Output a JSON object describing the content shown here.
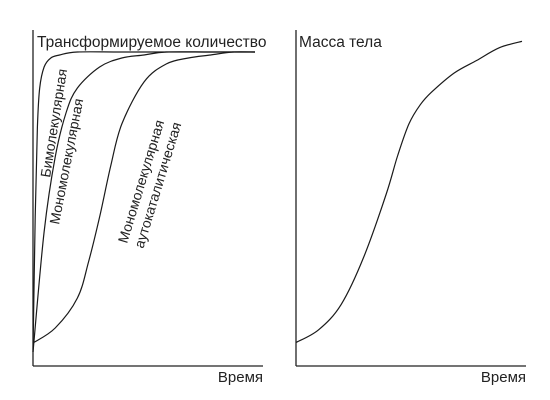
{
  "chart_data": [
    {
      "type": "line",
      "ylabel": "Трансформируемое количество",
      "xlabel": "Время",
      "xlim": [
        0,
        1
      ],
      "ylim": [
        0,
        1
      ],
      "grid": false,
      "series": [
        {
          "name": "Бимолекулярная",
          "x": [
            0,
            0.01,
            0.02,
            0.03,
            0.05,
            0.08,
            0.12,
            0.2,
            0.4,
            0.7,
            1.0
          ],
          "y": [
            0.0,
            0.45,
            0.75,
            0.88,
            0.95,
            0.98,
            0.99,
            1.0,
            1.0,
            1.0,
            1.0
          ]
        },
        {
          "name": "Мономолекулярная",
          "x": [
            0,
            0.05,
            0.1,
            0.15,
            0.2,
            0.3,
            0.4,
            0.5,
            0.6,
            0.8,
            1.0
          ],
          "y": [
            0.0,
            0.4,
            0.65,
            0.8,
            0.88,
            0.95,
            0.98,
            0.99,
            1.0,
            1.0,
            1.0
          ]
        },
        {
          "name": "Мономолекулярная\nаутокаталитическая",
          "x": [
            0,
            0.1,
            0.2,
            0.25,
            0.3,
            0.35,
            0.4,
            0.5,
            0.6,
            0.7,
            0.8,
            0.9,
            1.0
          ],
          "y": [
            0.03,
            0.08,
            0.18,
            0.3,
            0.45,
            0.62,
            0.76,
            0.9,
            0.96,
            0.98,
            0.99,
            1.0,
            1.0
          ]
        }
      ]
    },
    {
      "type": "line",
      "ylabel": "Масса тела",
      "xlabel": "Время",
      "xlim": [
        0,
        1
      ],
      "ylim": [
        0,
        1
      ],
      "grid": false,
      "series": [
        {
          "x": [
            0,
            0.1,
            0.2,
            0.3,
            0.4,
            0.45,
            0.5,
            0.55,
            0.6,
            0.7,
            0.8,
            0.9,
            1.0
          ],
          "y": [
            0.03,
            0.07,
            0.15,
            0.3,
            0.5,
            0.62,
            0.72,
            0.78,
            0.82,
            0.88,
            0.92,
            0.96,
            0.98
          ]
        }
      ]
    }
  ]
}
